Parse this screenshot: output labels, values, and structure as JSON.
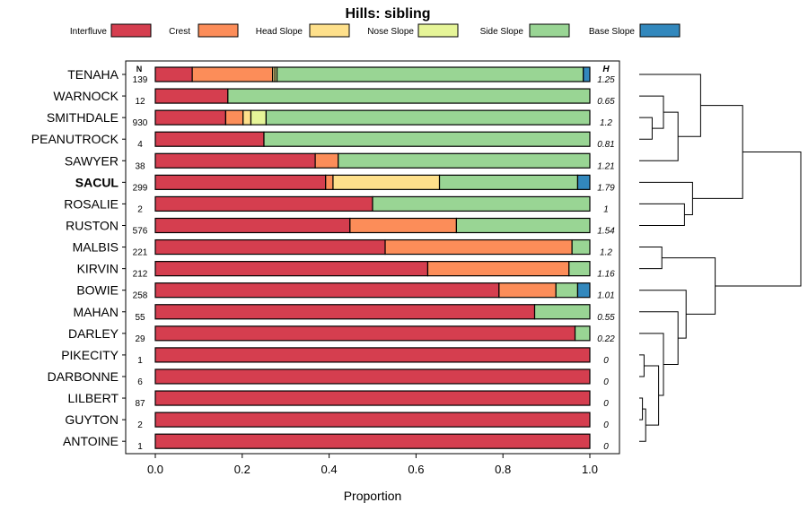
{
  "chart_data": {
    "type": "bar",
    "stacked": true,
    "orientation": "horizontal",
    "title": "Hills: sibling",
    "xlabel": "Proportion",
    "xlim": [
      0,
      1
    ],
    "x_ticks": [
      "0.0",
      "0.2",
      "0.4",
      "0.6",
      "0.8",
      "1.0"
    ],
    "x_tick_values": [
      0,
      0.2,
      0.4,
      0.6,
      0.8,
      1.0
    ],
    "n_header": "N",
    "h_header": "H",
    "legend": {
      "position": "top",
      "entries": [
        {
          "label": "Interfluve",
          "color": "#D53E4F"
        },
        {
          "label": "Crest",
          "color": "#FC8D59"
        },
        {
          "label": "Head Slope",
          "color": "#FEE08B"
        },
        {
          "label": "Nose Slope",
          "color": "#E6F598"
        },
        {
          "label": "Side Slope",
          "color": "#99D594"
        },
        {
          "label": "Base Slope",
          "color": "#3288BD"
        }
      ]
    },
    "highlight": "SACUL",
    "rows": [
      {
        "name": "TENAHA",
        "n": "139",
        "h": "1.25",
        "values": [
          0.085,
          0.185,
          0.005,
          0.005,
          0.705,
          0.015
        ]
      },
      {
        "name": "WARNOCK",
        "n": "12",
        "h": "0.65",
        "values": [
          0.167,
          0,
          0,
          0,
          0.833,
          0
        ]
      },
      {
        "name": "SMITHDALE",
        "n": "930",
        "h": "1.2",
        "values": [
          0.162,
          0.04,
          0.018,
          0.035,
          0.745,
          0
        ]
      },
      {
        "name": "PEANUTROCK",
        "n": "4",
        "h": "0.81",
        "values": [
          0.25,
          0,
          0,
          0,
          0.75,
          0
        ]
      },
      {
        "name": "SAWYER",
        "n": "38",
        "h": "1.21",
        "values": [
          0.368,
          0.053,
          0,
          0,
          0.579,
          0
        ]
      },
      {
        "name": "SACUL",
        "n": "299",
        "h": "1.79",
        "values": [
          0.392,
          0.017,
          0.245,
          0,
          0.318,
          0.028
        ]
      },
      {
        "name": "ROSALIE",
        "n": "2",
        "h": "1",
        "values": [
          0.5,
          0,
          0,
          0,
          0.5,
          0
        ]
      },
      {
        "name": "RUSTON",
        "n": "576",
        "h": "1.54",
        "values": [
          0.448,
          0.245,
          0,
          0,
          0.307,
          0
        ]
      },
      {
        "name": "MALBIS",
        "n": "221",
        "h": "1.2",
        "values": [
          0.529,
          0.43,
          0,
          0,
          0.041,
          0
        ]
      },
      {
        "name": "KIRVIN",
        "n": "212",
        "h": "1.16",
        "values": [
          0.627,
          0.325,
          0,
          0,
          0.048,
          0
        ]
      },
      {
        "name": "BOWIE",
        "n": "258",
        "h": "1.01",
        "values": [
          0.791,
          0.131,
          0,
          0,
          0.05,
          0.028
        ]
      },
      {
        "name": "MAHAN",
        "n": "55",
        "h": "0.55",
        "values": [
          0.873,
          0,
          0,
          0,
          0.127,
          0
        ]
      },
      {
        "name": "DARLEY",
        "n": "29",
        "h": "0.22",
        "values": [
          0.966,
          0,
          0,
          0,
          0.034,
          0
        ]
      },
      {
        "name": "PIKECITY",
        "n": "1",
        "h": "0",
        "values": [
          1,
          0,
          0,
          0,
          0,
          0
        ]
      },
      {
        "name": "DARBONNE",
        "n": "6",
        "h": "0",
        "values": [
          1,
          0,
          0,
          0,
          0,
          0
        ]
      },
      {
        "name": "LILBERT",
        "n": "87",
        "h": "0",
        "values": [
          1,
          0,
          0,
          0,
          0,
          0
        ]
      },
      {
        "name": "GUYTON",
        "n": "2",
        "h": "0",
        "values": [
          1,
          0,
          0,
          0,
          0,
          0
        ]
      },
      {
        "name": "ANTOINE",
        "n": "1",
        "h": "0",
        "values": [
          1,
          0,
          0,
          0,
          0,
          0
        ]
      }
    ],
    "dendrogram": {
      "leaves": [
        "TENAHA",
        "WARNOCK",
        "SMITHDALE",
        "PEANUTROCK",
        "SAWYER",
        "SACUL",
        "ROSALIE",
        "RUSTON",
        "MALBIS",
        "KIRVIN",
        "BOWIE",
        "MAHAN",
        "DARLEY",
        "PIKECITY",
        "DARBONNE",
        "LILBERT",
        "GUYTON",
        "ANTOINE"
      ],
      "merges": [
        {
          "a": "SMITHDALE",
          "b": "PEANUTROCK",
          "height": 0.08
        },
        {
          "a": "WARNOCK",
          "b": "m1",
          "height": 0.15
        },
        {
          "a": "m2",
          "b": "SAWYER",
          "height": 0.24
        },
        {
          "a": "TENAHA",
          "b": "m3",
          "height": 0.38
        },
        {
          "a": "ROSALIE",
          "b": "RUSTON",
          "height": 0.28
        },
        {
          "a": "SACUL",
          "b": "m5",
          "height": 0.33
        },
        {
          "a": "m4",
          "b": "m6",
          "height": 0.64
        },
        {
          "a": "MALBIS",
          "b": "KIRVIN",
          "height": 0.14
        },
        {
          "a": "LILBERT",
          "b": "GUYTON",
          "height": 0.02
        },
        {
          "a": "m9",
          "b": "ANTOINE",
          "height": 0.04
        },
        {
          "a": "PIKECITY",
          "b": "DARBONNE",
          "height": 0.03
        },
        {
          "a": "m11",
          "b": "m10",
          "height": 0.12
        },
        {
          "a": "DARLEY",
          "b": "m12",
          "height": 0.15
        },
        {
          "a": "MAHAN",
          "b": "m13",
          "height": 0.24
        },
        {
          "a": "BOWIE",
          "b": "m14",
          "height": 0.29
        },
        {
          "a": "m8",
          "b": "m15",
          "height": 0.47
        },
        {
          "a": "m7",
          "b": "m16",
          "height": 1.0
        }
      ]
    }
  }
}
